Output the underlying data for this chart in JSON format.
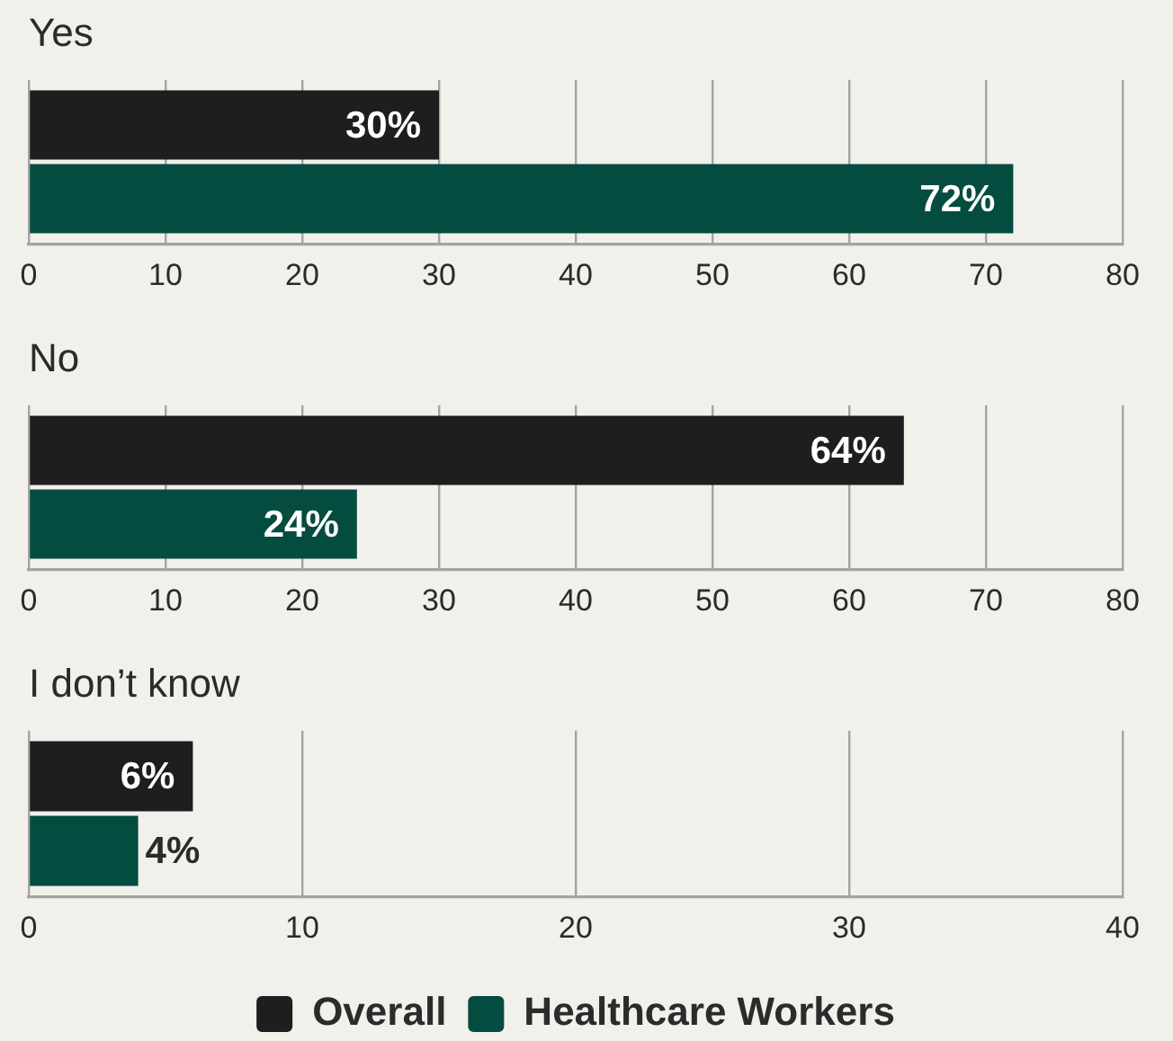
{
  "chart_data": [
    {
      "type": "bar",
      "orientation": "horizontal",
      "title": "Yes",
      "categories": [
        null
      ],
      "series": [
        {
          "color": "#1e1e1e",
          "values": [
            30
          ],
          "value_labels": [
            "30%"
          ]
        },
        {
          "color": "#054c40",
          "values": [
            72
          ],
          "value_labels": [
            "72%"
          ]
        }
      ],
      "xlim": [
        0,
        80
      ],
      "xticks": [
        0,
        10,
        20,
        30,
        40,
        50,
        60,
        70,
        80
      ],
      "grid": "x",
      "legend": false
    },
    {
      "type": "bar",
      "orientation": "horizontal",
      "title": "No",
      "categories": [
        null
      ],
      "series": [
        {
          "color": "#1e1e1e",
          "values": [
            64
          ],
          "value_labels": [
            "64%"
          ]
        },
        {
          "color": "#054c40",
          "values": [
            24
          ],
          "value_labels": [
            "24%"
          ]
        }
      ],
      "xlim": [
        0,
        80
      ],
      "xticks": [
        0,
        10,
        20,
        30,
        40,
        50,
        60,
        70,
        80
      ],
      "grid": "x",
      "legend": false
    },
    {
      "type": "bar",
      "orientation": "horizontal",
      "title": "I don’t know",
      "categories": [
        null
      ],
      "series": [
        {
          "name": "Overall",
          "color": "#1e1e1e",
          "values": [
            6
          ],
          "value_labels": [
            "6%"
          ]
        },
        {
          "name": "Healthcare Workers",
          "color": "#054c40",
          "values": [
            4
          ],
          "value_labels": [
            "4%"
          ]
        }
      ],
      "xlim": [
        0,
        40
      ],
      "xticks": [
        0,
        10,
        20,
        30,
        40
      ],
      "grid": "x",
      "legend": "bottom"
    }
  ]
}
